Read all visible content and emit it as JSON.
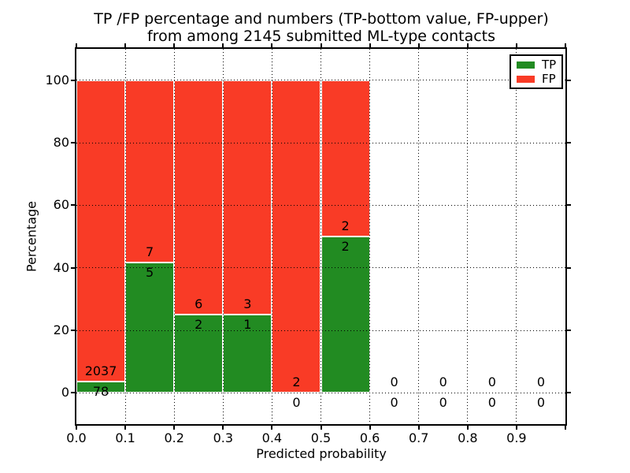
{
  "chart_data": {
    "type": "bar",
    "stacked": true,
    "title_line1": "TP /FP percentage and numbers (TP-bottom value, FP-upper)",
    "title_line2": "from among 2145 submitted ML-type contacts",
    "xlabel": "Predicted probability",
    "ylabel": "Percentage",
    "xlim": [
      0.0,
      1.0
    ],
    "ylim": [
      -10,
      110
    ],
    "x_tick_labels": [
      "0.0",
      "0.1",
      "0.2",
      "0.3",
      "0.4",
      "0.5",
      "0.6",
      "0.7",
      "0.8",
      "0.9"
    ],
    "y_tick_values": [
      0,
      20,
      40,
      60,
      80,
      100
    ],
    "y_tick_labels": [
      "0",
      "20",
      "40",
      "60",
      "80",
      "100"
    ],
    "grid_style": "dotted",
    "total_submitted": 2145,
    "legend": {
      "position": "upper right",
      "entries": [
        {
          "label": "TP",
          "color": "#228b22"
        },
        {
          "label": "FP",
          "color": "#f93b26"
        }
      ]
    },
    "colors": {
      "tp": "#228b22",
      "fp": "#f93b26",
      "grid": "#000000",
      "bar_edge": "#ffffff"
    },
    "bins": [
      {
        "range": "0.0-0.1",
        "tp": 78,
        "fp": 2037,
        "tp_pct": 3.69,
        "fp_pct": 96.31
      },
      {
        "range": "0.1-0.2",
        "tp": 5,
        "fp": 7,
        "tp_pct": 41.67,
        "fp_pct": 58.33
      },
      {
        "range": "0.2-0.3",
        "tp": 2,
        "fp": 6,
        "tp_pct": 25.0,
        "fp_pct": 75.0
      },
      {
        "range": "0.3-0.4",
        "tp": 1,
        "fp": 3,
        "tp_pct": 25.0,
        "fp_pct": 75.0
      },
      {
        "range": "0.4-0.5",
        "tp": 0,
        "fp": 2,
        "tp_pct": 0.0,
        "fp_pct": 100.0
      },
      {
        "range": "0.5-0.6",
        "tp": 2,
        "fp": 2,
        "tp_pct": 50.0,
        "fp_pct": 50.0
      },
      {
        "range": "0.6-0.7",
        "tp": 0,
        "fp": 0,
        "tp_pct": 0.0,
        "fp_pct": 0.0
      },
      {
        "range": "0.7-0.8",
        "tp": 0,
        "fp": 0,
        "tp_pct": 0.0,
        "fp_pct": 0.0
      },
      {
        "range": "0.8-0.9",
        "tp": 0,
        "fp": 0,
        "tp_pct": 0.0,
        "fp_pct": 0.0
      },
      {
        "range": "0.9-1.0",
        "tp": 0,
        "fp": 0,
        "tp_pct": 0.0,
        "fp_pct": 0.0
      }
    ]
  }
}
